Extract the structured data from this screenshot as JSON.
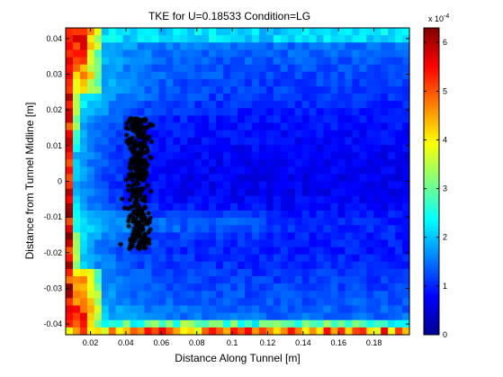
{
  "chart_data": {
    "type": "heatmap",
    "title": "TKE for U=0.18533 Condition=LG",
    "xlabel": "Distance Along Tunnel [m]",
    "ylabel": "Distance from Tunnel Midline [m]",
    "xlim": [
      0.006,
      0.2
    ],
    "ylim": [
      -0.043,
      0.043
    ],
    "x_ticks": [
      "0.02",
      "0.04",
      "0.06",
      "0.08",
      "0.1",
      "0.12",
      "0.14",
      "0.16",
      "0.18"
    ],
    "x_tick_values": [
      0.02,
      0.04,
      0.06,
      0.08,
      0.1,
      0.12,
      0.14,
      0.16,
      0.18
    ],
    "y_ticks": [
      "0.04",
      "0.03",
      "0.02",
      "0.01",
      "0",
      "-0.01",
      "-0.02",
      "-0.03",
      "-0.04"
    ],
    "y_tick_values": [
      0.04,
      0.03,
      0.02,
      0.01,
      0,
      -0.01,
      -0.02,
      -0.03,
      -0.04
    ],
    "colorbar": {
      "range": [
        0,
        6.3
      ],
      "ticks": [
        "0",
        "1",
        "2",
        "3",
        "4",
        "5",
        "6"
      ],
      "tick_values": [
        0,
        1,
        2,
        3,
        4,
        5,
        6
      ],
      "multiplier_base": "x 10",
      "multiplier_exp": "-4"
    },
    "colormap": "jet",
    "heatmap_summary": {
      "core_value": 0.7,
      "outer_value": 1.6,
      "left_edge_value": 6.2,
      "bottom_edge_value": 5.0
    },
    "scatter": {
      "marker": "*",
      "color": "#000000",
      "x_center": 0.047,
      "x_spread": 0.0035,
      "y_range": [
        -0.019,
        0.018
      ],
      "count": 340
    }
  }
}
